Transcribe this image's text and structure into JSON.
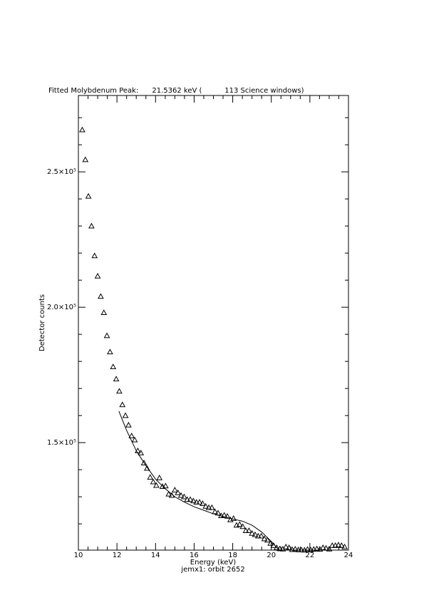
{
  "chart_data": {
    "type": "scatter",
    "title": "Fitted Molybdenum Peak:      21.5362 keV (          113 Science windows)",
    "xlabel": "Energy (keV)",
    "subtitle": "jemx1: orbit 2652",
    "ylabel": "Detector counts",
    "xlim": [
      10,
      24
    ],
    "ylim": [
      110300,
      278200
    ],
    "xticks": [
      10,
      12,
      14,
      16,
      18,
      20,
      22,
      24
    ],
    "xminorticks": [
      10.5,
      11,
      11.5,
      12.5,
      13,
      13.5,
      14.5,
      15,
      15.5,
      16.5,
      17,
      17.5,
      18.5,
      19,
      19.5,
      20.5,
      21,
      21.5,
      22.5,
      23,
      23.5
    ],
    "yticks": [
      {
        "value": 150000,
        "label": "1.5×10⁵"
      },
      {
        "value": 200000,
        "label": "2.0×10⁵"
      },
      {
        "value": 250000,
        "label": "2.5×10⁵"
      }
    ],
    "yminorticks": [
      120000,
      130000,
      140000,
      160000,
      170000,
      180000,
      190000,
      210000,
      220000,
      230000,
      240000,
      260000,
      270000
    ],
    "series": [
      {
        "style": "triangle",
        "color": "#000000",
        "x": [
          10.2,
          10.36,
          10.52,
          10.68,
          10.84,
          11.0,
          11.16,
          11.32,
          11.48,
          11.64,
          11.8,
          11.96,
          12.12,
          12.28,
          12.44,
          12.6,
          12.76,
          12.92,
          13.08,
          13.24,
          13.4,
          13.56,
          13.72,
          13.88,
          14.04,
          14.2,
          14.36,
          14.52,
          14.68,
          14.84,
          15.0,
          15.16,
          15.32,
          15.48,
          15.64,
          15.8,
          15.96,
          16.12,
          16.28,
          16.44,
          16.6,
          16.76,
          16.92,
          17.08,
          17.24,
          17.4,
          17.56,
          17.72,
          17.88,
          18.04,
          18.2,
          18.36,
          18.52,
          18.68,
          18.84,
          19.0,
          19.16,
          19.32,
          19.48,
          19.64,
          19.8,
          19.96,
          20.12,
          20.28,
          20.44,
          20.6,
          20.76,
          20.92,
          21.08,
          21.24,
          21.4,
          21.56,
          21.72,
          21.88,
          22.04,
          22.2,
          22.36,
          22.52,
          22.68,
          22.84,
          23.0,
          23.16,
          23.32,
          23.48,
          23.64,
          23.8
        ],
        "values": [
          265500,
          254500,
          241000,
          230000,
          219000,
          211500,
          204000,
          198000,
          189500,
          183500,
          178000,
          173500,
          169000,
          164000,
          160000,
          156500,
          152500,
          151000,
          147000,
          146200,
          142500,
          140500,
          137200,
          135500,
          134200,
          137000,
          133800,
          134000,
          131000,
          130500,
          132500,
          131500,
          130500,
          130000,
          129000,
          129000,
          128500,
          128000,
          128000,
          127500,
          126500,
          126000,
          126000,
          124500,
          124000,
          123000,
          123200,
          122800,
          121500,
          122000,
          119500,
          119800,
          119000,
          117500,
          117500,
          116500,
          116000,
          115500,
          115500,
          114500,
          114000,
          112800,
          112000,
          111200,
          110800,
          110700,
          111500,
          111200,
          110500,
          110700,
          110400,
          110400,
          110300,
          110600,
          110400,
          110600,
          110800,
          110600,
          111200,
          111000,
          110700,
          112000,
          112000,
          112200,
          112000,
          111500
        ]
      },
      {
        "style": "line",
        "color": "#000000",
        "x": [
          12.1,
          12.5,
          13,
          13.5,
          14,
          14.5,
          15,
          15.5,
          16,
          16.5,
          17,
          17.5,
          18,
          18.5,
          19,
          19.5,
          20,
          20.4
        ],
        "values": [
          161600,
          154500,
          147000,
          141500,
          136500,
          133000,
          130000,
          128000,
          126300,
          125000,
          123700,
          122700,
          121800,
          121000,
          119500,
          117000,
          113500,
          110300
        ]
      }
    ]
  }
}
